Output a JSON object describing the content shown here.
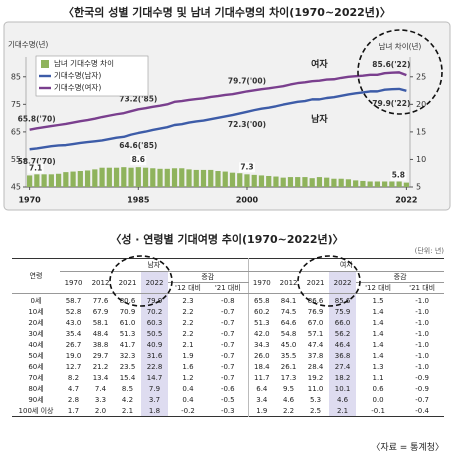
{
  "chart_data": {
    "type": "combo",
    "title": "〈한국의 성별 기대수명 및 남녀 기대수명의 차이(1970~2022년)〉",
    "ylabel": "기대수명(년)",
    "y2label": "남녀 차이(년)",
    "x": [
      1970,
      1971,
      1972,
      1973,
      1974,
      1975,
      1976,
      1977,
      1978,
      1979,
      1980,
      1981,
      1982,
      1983,
      1984,
      1985,
      1986,
      1987,
      1988,
      1989,
      1990,
      1991,
      1992,
      1993,
      1994,
      1995,
      1996,
      1997,
      1998,
      1999,
      2000,
      2001,
      2002,
      2003,
      2004,
      2005,
      2006,
      2007,
      2008,
      2009,
      2010,
      2011,
      2012,
      2013,
      2014,
      2015,
      2016,
      2017,
      2018,
      2019,
      2020,
      2021,
      2022
    ],
    "xlim": [
      1969.5,
      2022.5
    ],
    "xticks": [
      1970,
      1985,
      2000,
      2022
    ],
    "ylim": [
      45,
      90
    ],
    "yticks": [
      45,
      55,
      65,
      75,
      85
    ],
    "y2lim": [
      5,
      27.5
    ],
    "y2ticks": [
      5,
      10,
      15,
      20,
      25
    ],
    "grid": false,
    "legend": "upper left",
    "series": [
      {
        "name": "남녀 기대수명 차이",
        "type": "bar",
        "axis": "y2",
        "color": "#8fb35c",
        "values": [
          7.1,
          7.3,
          7.3,
          7.3,
          7.4,
          7.7,
          7.8,
          7.9,
          8.0,
          8.2,
          8.5,
          8.5,
          8.5,
          8.6,
          8.5,
          8.6,
          8.5,
          8.4,
          8.3,
          8.3,
          8.4,
          8.4,
          8.2,
          8.1,
          8.1,
          8.1,
          7.9,
          7.8,
          7.6,
          7.5,
          7.3,
          7.2,
          7.1,
          7.0,
          6.9,
          6.7,
          6.8,
          6.8,
          6.8,
          6.6,
          6.8,
          6.7,
          6.5,
          6.5,
          6.4,
          6.2,
          6.1,
          6.0,
          6.0,
          6.0,
          6.0,
          6.0,
          5.8
        ]
      },
      {
        "name": "기대수명(남자)",
        "label": "남자",
        "type": "line",
        "color": "#3d5ca8",
        "values": [
          58.7,
          59.0,
          59.4,
          59.8,
          60.1,
          60.2,
          60.6,
          61.0,
          61.3,
          61.6,
          61.9,
          62.4,
          62.9,
          63.2,
          64.0,
          64.6,
          65.1,
          65.7,
          66.2,
          66.7,
          67.5,
          67.8,
          68.4,
          68.8,
          69.1,
          69.6,
          70.1,
          70.6,
          71.1,
          71.7,
          72.3,
          72.9,
          73.4,
          73.8,
          74.3,
          74.9,
          75.4,
          75.9,
          76.2,
          76.8,
          76.8,
          77.3,
          77.6,
          78.1,
          78.6,
          79.0,
          79.3,
          79.7,
          79.7,
          80.3,
          80.5,
          80.6,
          79.9
        ],
        "value_labels": [
          "58.7('70)",
          null,
          null,
          null,
          null,
          null,
          null,
          null,
          null,
          null,
          null,
          null,
          null,
          null,
          null,
          "64.6('85)",
          null,
          null,
          null,
          null,
          null,
          null,
          null,
          null,
          null,
          null,
          null,
          null,
          null,
          null,
          "72.3('00)",
          null,
          null,
          null,
          null,
          null,
          null,
          null,
          null,
          null,
          null,
          null,
          null,
          null,
          null,
          null,
          null,
          null,
          null,
          null,
          null,
          null,
          "79.9('22)"
        ]
      },
      {
        "name": "기대수명(여자)",
        "label": "여자",
        "type": "line",
        "color": "#7a3f8e",
        "values": [
          65.8,
          66.3,
          66.7,
          67.1,
          67.5,
          67.9,
          68.4,
          68.9,
          69.3,
          69.8,
          70.4,
          70.9,
          71.4,
          71.8,
          72.5,
          73.2,
          73.6,
          74.1,
          74.5,
          75.0,
          75.9,
          76.2,
          76.6,
          76.9,
          77.2,
          77.7,
          78.0,
          78.4,
          78.7,
          79.2,
          79.7,
          80.1,
          80.5,
          80.8,
          81.2,
          81.6,
          82.2,
          82.7,
          83.0,
          83.4,
          83.6,
          84.0,
          84.1,
          84.6,
          85.0,
          85.2,
          85.4,
          85.7,
          85.7,
          86.3,
          86.5,
          86.6,
          85.6
        ],
        "value_labels": [
          "65.8('70)",
          null,
          null,
          null,
          null,
          null,
          null,
          null,
          null,
          null,
          null,
          null,
          null,
          null,
          null,
          "73.2('85)",
          null,
          null,
          null,
          null,
          null,
          null,
          null,
          null,
          null,
          null,
          null,
          null,
          null,
          null,
          "79.7('00)",
          null,
          null,
          null,
          null,
          null,
          null,
          null,
          null,
          null,
          null,
          null,
          null,
          null,
          null,
          null,
          null,
          null,
          null,
          null,
          null,
          null,
          "85.6('22)"
        ]
      }
    ]
  },
  "table_title": "〈성 · 연령별 기대여명 추이(1970~2022년)〉",
  "unit": "(단위: 년)",
  "table": {
    "corner": "연령",
    "groups": [
      {
        "name": "남자",
        "years": [
          "1970",
          "2012",
          "2021",
          "2022"
        ],
        "change": "증감",
        "change_cols": [
          "'12 대비",
          "'21 대비"
        ]
      },
      {
        "name": "여자",
        "years": [
          "1970",
          "2012",
          "2021",
          "2022"
        ],
        "change": "증감",
        "change_cols": [
          "'12 대비",
          "'21 대비"
        ]
      }
    ],
    "rows": [
      [
        "0세",
        "58.7",
        "77.6",
        "80.6",
        "79.9",
        "2.3",
        "-0.8",
        "65.8",
        "84.1",
        "86.6",
        "85.6",
        "1.5",
        "-1.0"
      ],
      [
        "10세",
        "52.8",
        "67.9",
        "70.9",
        "70.2",
        "2.2",
        "-0.7",
        "60.2",
        "74.5",
        "76.9",
        "75.9",
        "1.4",
        "-1.0"
      ],
      [
        "20세",
        "43.0",
        "58.1",
        "61.0",
        "60.3",
        "2.2",
        "-0.7",
        "51.3",
        "64.6",
        "67.0",
        "66.0",
        "1.4",
        "-1.0"
      ],
      [
        "30세",
        "35.4",
        "48.4",
        "51.3",
        "50.5",
        "2.2",
        "-0.7",
        "42.0",
        "54.8",
        "57.1",
        "56.2",
        "1.4",
        "-1.0"
      ],
      [
        "40세",
        "26.7",
        "38.8",
        "41.7",
        "40.9",
        "2.1",
        "-0.7",
        "34.3",
        "45.0",
        "47.4",
        "46.4",
        "1.4",
        "-1.0"
      ],
      [
        "50세",
        "19.0",
        "29.7",
        "32.3",
        "31.6",
        "1.9",
        "-0.7",
        "26.0",
        "35.5",
        "37.8",
        "36.8",
        "1.4",
        "-1.0"
      ],
      [
        "60세",
        "12.7",
        "21.2",
        "23.5",
        "22.8",
        "1.6",
        "-0.7",
        "18.4",
        "26.1",
        "28.4",
        "27.4",
        "1.3",
        "-1.0"
      ],
      [
        "70세",
        "8.2",
        "13.4",
        "15.4",
        "14.7",
        "1.2",
        "-0.7",
        "11.7",
        "17.3",
        "19.2",
        "18.2",
        "1.1",
        "-0.9"
      ],
      [
        "80세",
        "4.7",
        "7.4",
        "8.5",
        "7.9",
        "0.4",
        "-0.6",
        "6.4",
        "9.5",
        "11.0",
        "10.1",
        "0.6",
        "-0.9"
      ],
      [
        "90세",
        "2.8",
        "3.3",
        "4.2",
        "3.7",
        "0.4",
        "-0.5",
        "3.4",
        "4.6",
        "5.3",
        "4.6",
        "0.0",
        "-0.7"
      ],
      [
        "100세 이상",
        "1.7",
        "2.0",
        "2.1",
        "1.8",
        "-0.2",
        "-0.3",
        "1.9",
        "2.2",
        "2.5",
        "2.1",
        "-0.1",
        "-0.4"
      ]
    ]
  },
  "source": "〈자료 = 통계청〉"
}
